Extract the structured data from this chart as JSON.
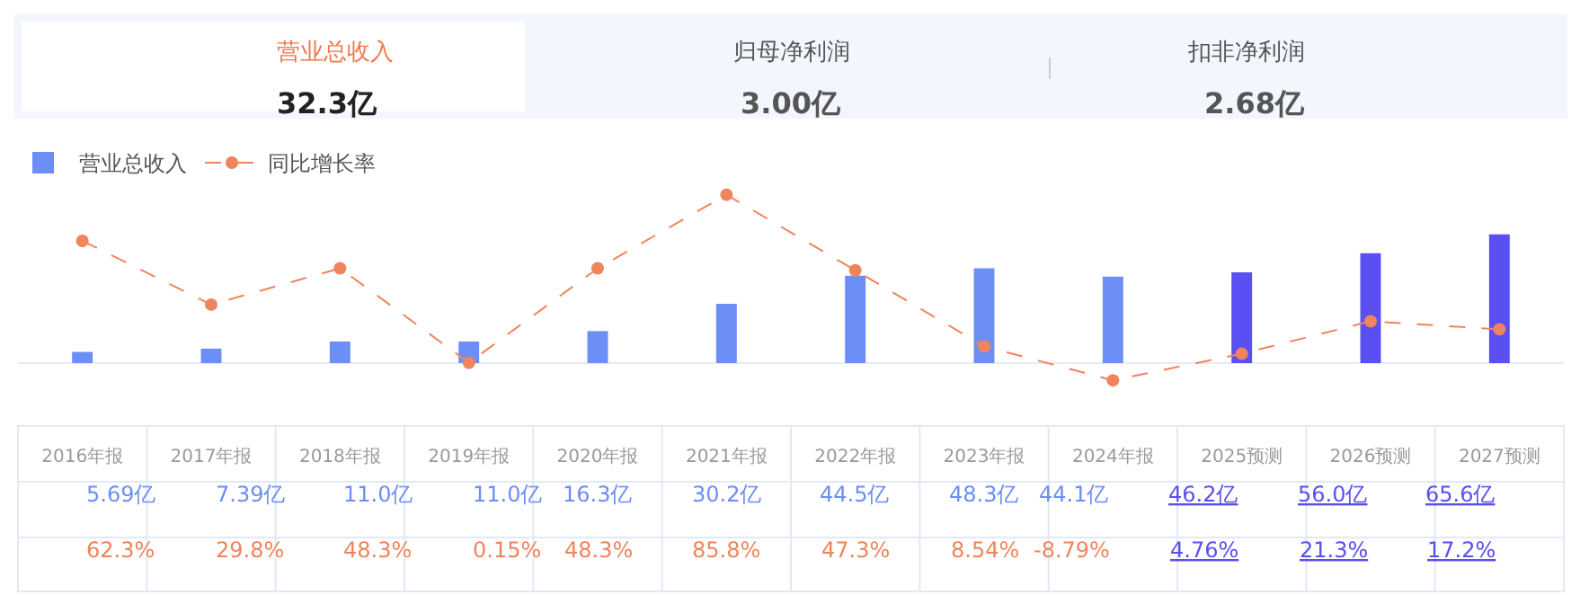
{
  "chart_data": [
    {
      "type": "other",
      "annotations": [
        "营业总收入",
        "32.3亿",
        "归母净利润",
        "3.00亿",
        "扣非净利润",
        "2.68亿"
      ]
    },
    {
      "type": "bar",
      "categories": [
        "2016年报",
        "2017年报",
        "2018年报",
        "2019年报",
        "2020年报",
        "2021年报",
        "2022年报",
        "2023年报",
        "2024年报",
        "2025预测",
        "2026预测",
        "2027预测"
      ],
      "series": [
        {
          "name": "营业总收入",
          "type": "bar",
          "color": "#6b8ef7",
          "colors": [
            "#6b8ef7",
            "#6b8ef7",
            "#6b8ef7",
            "#6b8ef7",
            "#6b8ef7",
            "#6b8ef7",
            "#6b8ef7",
            "#6b8ef7",
            "#6b8ef7",
            "#5a4ff2",
            "#5a4ff2",
            "#5a4ff2"
          ],
          "values": [
            5.69,
            7.39,
            11.0,
            11.0,
            16.3,
            30.2,
            44.5,
            48.3,
            44.1,
            46.2,
            56.0,
            65.6
          ],
          "value_labels": [
            "5.69亿",
            "7.39亿",
            "11.0亿",
            "11.0亿",
            "16.3亿",
            "30.2亿",
            "44.5亿",
            "48.3亿",
            "44.1亿",
            "46.2亿",
            "56.0亿",
            "65.6亿"
          ]
        },
        {
          "name": "同比增长率",
          "type": "line",
          "color": "#f0845c",
          "values": [
            62.3,
            29.8,
            48.3,
            0.15,
            48.3,
            85.8,
            47.3,
            8.54,
            -8.79,
            4.76,
            21.3,
            17.2
          ],
          "value_labels": [
            "62.3%",
            "29.8%",
            "48.3%",
            "0.15%",
            "48.3%",
            "85.8%",
            "47.3%",
            "8.54%",
            "-8.79%",
            "4.76%",
            "21.3%",
            "17.2%"
          ]
        }
      ],
      "line_style": "dashed",
      "marker": "circle",
      "legend": "top left",
      "grid": false,
      "tick_labels": "x"
    }
  ]
}
